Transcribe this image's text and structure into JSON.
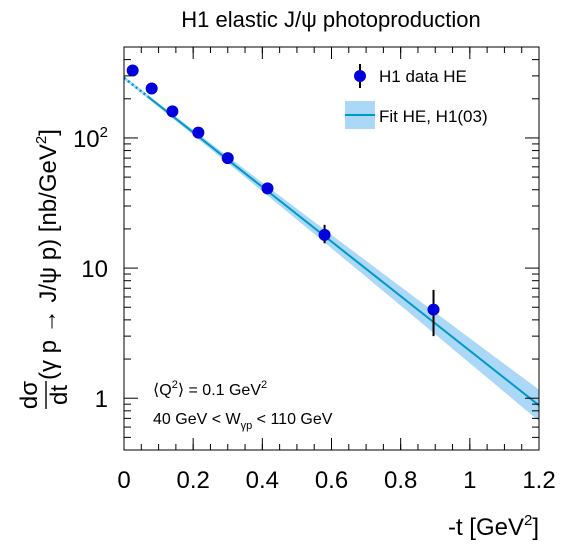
{
  "chart_data": {
    "type": "scatter",
    "title": "H1 elastic J/ψ photoproduction",
    "xlabel": {
      "base": "-t [GeV",
      "sup": "2",
      "end": "]"
    },
    "ylabel": {
      "frac_num": "dσ",
      "frac_den": "dt",
      "body": "(γ p → J/ψ p) [nb/GeV",
      "sup": "2",
      "end": "]"
    },
    "xlim": [
      0,
      1.2
    ],
    "ylim_log": [
      0.4,
      500
    ],
    "y_scale": "log",
    "x_ticks": [
      "0",
      "0.2",
      "0.4",
      "0.6",
      "0.8",
      "1",
      "1.2"
    ],
    "y_ticks": [
      {
        "value": 1,
        "label": "1"
      },
      {
        "value": 10,
        "label": "10"
      },
      {
        "value": 100,
        "label": "10",
        "sup": "2"
      }
    ],
    "legend_position": "top-right",
    "series": [
      {
        "name": "H1 data HE",
        "kind": "points",
        "color": "#0000dd",
        "points": [
          {
            "x": 0.025,
            "y": 330,
            "err_lo": 15,
            "err_hi": 15
          },
          {
            "x": 0.08,
            "y": 240,
            "err_lo": 10,
            "err_hi": 10
          },
          {
            "x": 0.14,
            "y": 160,
            "err_lo": 6,
            "err_hi": 6
          },
          {
            "x": 0.215,
            "y": 110,
            "err_lo": 4,
            "err_hi": 4
          },
          {
            "x": 0.3,
            "y": 70,
            "err_lo": 3,
            "err_hi": 3
          },
          {
            "x": 0.415,
            "y": 41,
            "err_lo": 2,
            "err_hi": 2
          },
          {
            "x": 0.58,
            "y": 18,
            "err_lo": 2.5,
            "err_hi": 3.5
          },
          {
            "x": 0.895,
            "y": 4.8,
            "err_lo": 1.8,
            "err_hi": 2.0
          }
        ]
      },
      {
        "name": "Fit HE, H1(03)",
        "kind": "fit",
        "color": "#0099c6",
        "band_color": "#aad8f6",
        "norm": 290,
        "slope": 4.83,
        "x_start": 0.0,
        "x_dotted_end": 0.07,
        "x_end": 1.2,
        "band_rel_at_0": 0.03,
        "band_rel_at_end": 0.32
      }
    ],
    "annotations": [
      {
        "id": "q2",
        "parts": [
          {
            "t": "⟨Q"
          },
          {
            "t": "2",
            "sup": true
          },
          {
            "t": "⟩ = 0.1 GeV"
          },
          {
            "t": "2",
            "sup": true
          }
        ]
      },
      {
        "id": "w",
        "parts": [
          {
            "t": "40 GeV < W"
          },
          {
            "t": "γp",
            "sub": true
          },
          {
            "t": " < 110 GeV"
          }
        ]
      }
    ]
  }
}
